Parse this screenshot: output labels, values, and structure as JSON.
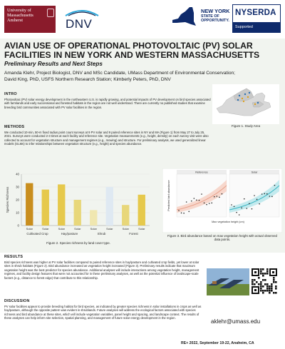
{
  "header": {
    "umass_lines": [
      "University of",
      "Massachusetts",
      "Amherst"
    ],
    "dnv": "DNV",
    "nys_lines": [
      "NEW YORK",
      "STATE OF",
      "OPPORTUNITY."
    ],
    "nyserda": "NYSERDA",
    "nyserda_sub": "Supported"
  },
  "title": "AVIAN USE OF OPERATIONAL PHOTOVOLTAIC (PV) SOLAR FACILITIES IN NEW YORK AND WESTERN MASSACHUSETTS",
  "subtitle": "Preliminary Results and Next Steps",
  "authors": [
    "Amanda Klehr, Project Biologist, DNV and MSc Candidate, UMass Department of Environmental Conservation;",
    "David King, PhD, USFS Northern Research Station; Kimberly Peters, PhD, DNV"
  ],
  "intro": {
    "heading": "INTRO",
    "text": "Photovoltaic (PV) solar energy development in the northeastern U.S. is rapidly growing, and potential impacts of PV development on bird species associated with farmlands and early successional and forested habitats in the region are not well understood. There are currently no published studies that examine breeding bird communities associated with PV solar facilities in the region."
  },
  "methods": {
    "heading": "METHODS",
    "text": "We conducted 10-min, 50-m fixed radius point count surveys at 9 PV solar and 9 paired reference sites in NY and MA (Figure 1) from May 27 to July 25, 2021. Surveys were conducted 2-3 times at each facility and reference site. Vegetation measurements (e.g., height, density) on each survey visit were also collected to account for vegetation structure and management regimes (e.g., mowing) and structure. For preliminary analysis, we used generalized linear models (GLMs) to infer relationships between vegetation structure (e.g., height) and species abundance."
  },
  "figure1_caption": "Figure 1. Study Area",
  "chart_data": [
    {
      "type": "bar",
      "title": "",
      "ylabel": "Species Richness",
      "xlabel": "",
      "ylim": [
        0,
        40
      ],
      "yticks": [
        0,
        10,
        20,
        30,
        40
      ],
      "groups": [
        "Cultivated Crop",
        "Hay/pasture",
        "Shrub",
        "Forest"
      ],
      "categories": [
        "Solar",
        "Solar",
        "Solar",
        "Solar",
        "Solar",
        "Solar",
        "Solar",
        "Solar"
      ],
      "values": [
        33,
        28,
        32,
        20,
        12,
        30,
        16,
        24
      ],
      "colors": [
        "#c98e1e",
        "#e6c94c",
        "#e6c94c",
        "#e8d77a",
        "#f0e7b0",
        "#dfe9f2",
        "#e8d77a",
        "#e6c94c"
      ],
      "caption": "Figure 2. Species richness by land cover type."
    },
    {
      "type": "scatter",
      "title": "",
      "xlabel": "Max vegetation height (cm)",
      "ylabel": "Predicted bird abundance",
      "panels": [
        "Reference",
        "Solar"
      ],
      "caption": "Figure 3. Bird abundance based on max vegetation height with actual observed data points."
    }
  ],
  "results": {
    "heading": "RESULTS",
    "text": "Bird species richness was higher at PV solar facilities compared to paired reference sites in hay/pasture and cultivated crop fields, yet lower at solar sites in shrub habitats (Figure 2). Bird abundance increased as vegetation height increased (Figure 3). Preliminary results indicate that maximum vegetation height was the best predictor for species abundance. Additional analyses will include interactions among vegetation height, management regimes, and facility design features that were not accounted for in these preliminary analyses, as well as the potential influence of landscape-scale factors (e.g., distance to forest edge) that contribute to this relationship."
  },
  "discussion": {
    "heading": "DISCUSSION",
    "text": "PV solar facilities appear to provide breeding habitat for bird species, as indicated by greater species richness in solar installations in crops as well as hay/pasture, although the opposite pattern was evident in shrublands. Future analyses will address the ecological factors associated with species richness and bird abundance at these sites, which will include vegetation variables, panel height and spacing, and landscape context. The results of these analyses can help inform site selection, spatial planning, and management of future solar energy development in the region."
  },
  "email": "aklehr@umass.edu",
  "footer": "RE+ 2022, September 19-22, Anaheim, CA",
  "colors": {
    "umass_maroon": "#8a1b2b",
    "navy": "#0e2a6b",
    "band": "#f1f4ef"
  }
}
